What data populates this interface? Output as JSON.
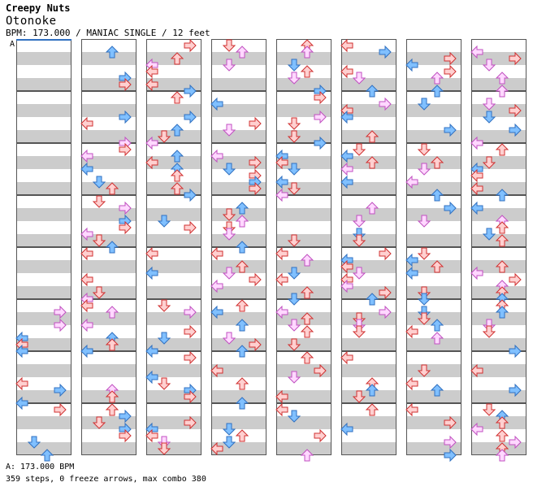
{
  "song": {
    "artist": "Creepy Nuts",
    "title": "Otonoke",
    "info": "BPM: 173.000 / MANIAC SINGLE / 12 feet"
  },
  "chart": {
    "section_label": "A",
    "measures_per_column": 8,
    "columns": 8,
    "colors": {
      "red_fill": "#ffd0d0",
      "red_stroke": "#d03030",
      "blue_fill": "#80c0ff",
      "blue_stroke": "#3070c0",
      "pink_fill": "#ffd8ff",
      "pink_stroke": "#c050c0",
      "stripe_dark": "#cccccc",
      "stripe_light": "#ffffff",
      "border": "#555555"
    },
    "arrow_icons": [
      "arrow-left-icon",
      "arrow-down-icon",
      "arrow-up-icon",
      "arrow-right-icon"
    ]
  },
  "footer": {
    "bpm": "A: 173.000 BPM",
    "stats": "359 steps, 0 freeze arrows, max combo 380"
  }
}
